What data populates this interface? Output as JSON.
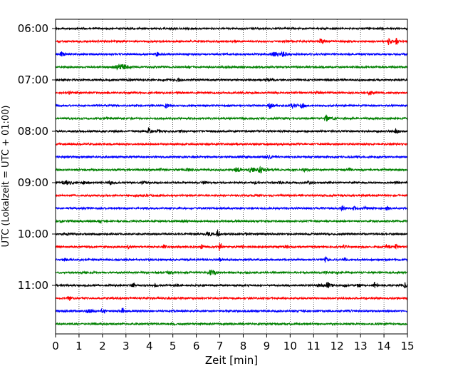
{
  "chart_data": {
    "type": "line",
    "subtype": "helicorder",
    "title": "",
    "xlabel": "Zeit  [min]",
    "ylabel": "UTC (Lokalzeit = UTC + 01:00)",
    "xlim": [
      0,
      15
    ],
    "x_ticks": [
      "0",
      "1",
      "2",
      "3",
      "4",
      "5",
      "6",
      "7",
      "8",
      "9",
      "10",
      "11",
      "12",
      "13",
      "14",
      "15"
    ],
    "y_tick_labels": [
      "06:00",
      "07:00",
      "08:00",
      "09:00",
      "10:00",
      "11:00"
    ],
    "grid": "vertical dotted",
    "trace_colors": [
      "#000000",
      "#ff0000",
      "#0000ff",
      "#008000"
    ],
    "traces": [
      {
        "start": "06:00",
        "events": []
      },
      {
        "start": "06:15",
        "events": [
          [
            9.8,
            0.2,
            0.8
          ],
          [
            11.3,
            0.12,
            5.5
          ],
          [
            14.2,
            0.12,
            4.5
          ],
          [
            14.5,
            0.12,
            4.5
          ]
        ]
      },
      {
        "start": "06:30",
        "events": [
          [
            0.25,
            0.15,
            3.5
          ],
          [
            4.3,
            0.12,
            3
          ],
          [
            9.3,
            0.25,
            2.5
          ],
          [
            9.7,
            0.2,
            2.5
          ]
        ]
      },
      {
        "start": "06:45",
        "events": [
          [
            2.7,
            0.4,
            3.5
          ],
          [
            7.3,
            0.3,
            0.8
          ]
        ]
      },
      {
        "start": "07:00",
        "events": [
          [
            5.2,
            0.15,
            2
          ],
          [
            3.2,
            0.3,
            0.8
          ],
          [
            9,
            0.3,
            0.8
          ]
        ]
      },
      {
        "start": "07:15",
        "events": [
          [
            0.55,
            0.08,
            1.5
          ],
          [
            5.3,
            0.2,
            0.8
          ],
          [
            11.2,
            0.3,
            0.8
          ],
          [
            13.4,
            0.2,
            2
          ]
        ]
      },
      {
        "start": "07:30",
        "events": [
          [
            4.7,
            0.12,
            3
          ],
          [
            9.1,
            0.12,
            4
          ],
          [
            10.1,
            0.15,
            3.5
          ],
          [
            10.5,
            0.15,
            3
          ]
        ]
      },
      {
        "start": "07:45",
        "events": [
          [
            2.2,
            0.2,
            0.8
          ],
          [
            11.5,
            0.08,
            5
          ],
          [
            11.6,
            0.35,
            1
          ]
        ]
      },
      {
        "start": "08:00",
        "events": [
          [
            3.95,
            0.12,
            4.5
          ],
          [
            4.4,
            0.15,
            1.5
          ],
          [
            5.3,
            0.1,
            1.2
          ],
          [
            14.5,
            0.12,
            3
          ]
        ]
      },
      {
        "start": "08:15",
        "events": [
          [
            9.4,
            0.3,
            0.6
          ]
        ]
      },
      {
        "start": "08:30",
        "events": [
          [
            7.8,
            0.3,
            0.5
          ],
          [
            9.05,
            0.2,
            1.5
          ]
        ]
      },
      {
        "start": "08:45",
        "events": [
          [
            4.5,
            0.2,
            1
          ],
          [
            5.6,
            0.15,
            1.8
          ],
          [
            7.7,
            0.2,
            2.5
          ],
          [
            8.3,
            0.25,
            2.5
          ],
          [
            8.7,
            0.25,
            4
          ],
          [
            9.2,
            0.12,
            1.5
          ],
          [
            10.6,
            0.2,
            1.5
          ],
          [
            12.5,
            0.12,
            2
          ]
        ]
      },
      {
        "start": "09:00",
        "events": [
          [
            0.4,
            0.3,
            2.5
          ],
          [
            1.2,
            0.15,
            1.5
          ],
          [
            2.3,
            0.15,
            2
          ],
          [
            3.7,
            0.15,
            1.5
          ],
          [
            6.3,
            0.12,
            2
          ],
          [
            8.5,
            0.12,
            1.5
          ],
          [
            9.5,
            0.15,
            1.5
          ],
          [
            10.8,
            0.15,
            1.5
          ],
          [
            14.5,
            0.12,
            1
          ]
        ]
      },
      {
        "start": "09:15",
        "events": [
          [
            3.5,
            0.6,
            0.5
          ]
        ]
      },
      {
        "start": "09:30",
        "events": [
          [
            12.2,
            0.12,
            3
          ],
          [
            12.7,
            0.12,
            2
          ],
          [
            13.2,
            0.12,
            1.5
          ],
          [
            14.1,
            0.1,
            2.5
          ]
        ]
      },
      {
        "start": "09:45",
        "events": [
          [
            0.2,
            0.2,
            1
          ],
          [
            1.9,
            0.12,
            2
          ],
          [
            5.4,
            0.2,
            1
          ]
        ]
      },
      {
        "start": "10:00",
        "events": [
          [
            0.5,
            0.05,
            1.5
          ],
          [
            6.5,
            0.2,
            2
          ],
          [
            6.9,
            0.08,
            6.5
          ],
          [
            8.1,
            0.06,
            2.5
          ]
        ]
      },
      {
        "start": "10:15",
        "events": [
          [
            3.1,
            0.1,
            2.5
          ],
          [
            4.6,
            0.1,
            2.5
          ],
          [
            6.2,
            0.08,
            3.5
          ],
          [
            7,
            0.1,
            6
          ],
          [
            7.9,
            0.1,
            3
          ],
          [
            9.8,
            0.08,
            3
          ],
          [
            12.3,
            0.1,
            3
          ],
          [
            14.1,
            0.15,
            3
          ],
          [
            14.5,
            0.1,
            3
          ]
        ]
      },
      {
        "start": "10:30",
        "events": [
          [
            0.35,
            0.2,
            1.5
          ],
          [
            7,
            0.1,
            1.5
          ],
          [
            11.5,
            0.1,
            3.5
          ],
          [
            12.3,
            0.1,
            3
          ]
        ]
      },
      {
        "start": "10:45",
        "events": [
          [
            4.8,
            0.2,
            1
          ],
          [
            6.6,
            0.25,
            3
          ],
          [
            8.1,
            0.1,
            1.2
          ],
          [
            11.5,
            0.08,
            1.2
          ],
          [
            12,
            0.08,
            1.2
          ]
        ]
      },
      {
        "start": "11:00",
        "events": [
          [
            3.3,
            0.1,
            3
          ],
          [
            4.2,
            0.2,
            1.5
          ],
          [
            5.1,
            0.15,
            1.2
          ],
          [
            11.2,
            0.25,
            1.5
          ],
          [
            11.6,
            0.15,
            3.5
          ],
          [
            12.3,
            0.12,
            2
          ],
          [
            12.9,
            0.15,
            1.5
          ],
          [
            13.6,
            0.1,
            3.5
          ],
          [
            14.9,
            0.12,
            3
          ]
        ]
      },
      {
        "start": "11:15",
        "events": [
          [
            0.55,
            0.1,
            3.5
          ]
        ]
      },
      {
        "start": "11:30",
        "events": [
          [
            1.4,
            0.25,
            2
          ],
          [
            2.0,
            0.15,
            2.5
          ],
          [
            2.85,
            0.08,
            4
          ],
          [
            5,
            0.2,
            0.6
          ],
          [
            12.5,
            0.2,
            0.8
          ]
        ]
      },
      {
        "start": "11:45",
        "events": []
      }
    ]
  }
}
